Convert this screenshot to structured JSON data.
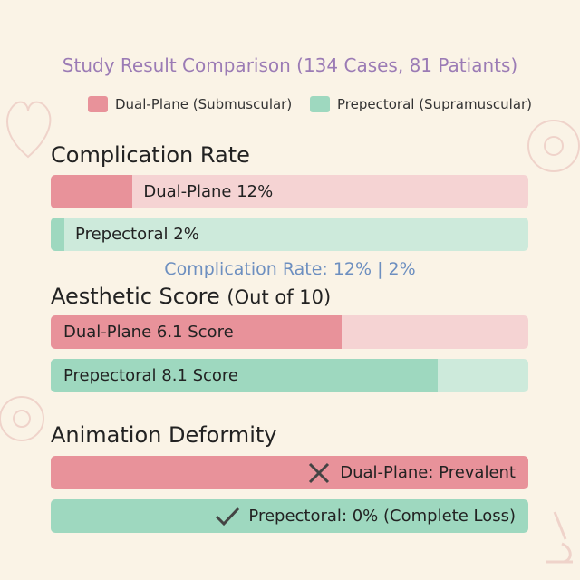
{
  "title": "Study Result Comparison (134 Cases, 81 Patiants)",
  "legend": [
    {
      "label": "Dual-Plane (Submuscular)",
      "color": "#e8929a"
    },
    {
      "label": "Prepectoral (Supramuscular)",
      "color": "#9ed8bf"
    }
  ],
  "sections": [
    {
      "heading": "Complication Rate",
      "xlim": [
        0,
        70
      ],
      "bars": [
        {
          "label": "Dual-Plane 12%",
          "value": 12,
          "color": "#e8929a",
          "track_color": "#f5d3d3"
        },
        {
          "label": "Prepectoral 2%",
          "value": 2,
          "color": "#9ed8bf",
          "track_color": "#cdeadb"
        }
      ],
      "summary": "Complication Rate: 12% | 2%"
    },
    {
      "heading": "Aesthetic Score",
      "subheading": "(Out of 10)",
      "xlim": [
        0,
        10
      ],
      "bars": [
        {
          "label": "Dual-Plane 6.1 Score",
          "value": 6.1,
          "color": "#e8929a",
          "track_color": "#f5d3d3"
        },
        {
          "label": "Prepectoral 8.1 Score",
          "value": 8.1,
          "color": "#9ed8bf",
          "track_color": "#cdeadb"
        }
      ]
    },
    {
      "heading": "Animation Deformity",
      "bars": [
        {
          "label": "Dual-Plane: Prevalent",
          "color": "#e8929a"
        },
        {
          "label": "Prepectoral: 0% (Complete Loss)",
          "color": "#9ed8bf"
        }
      ]
    }
  ]
}
